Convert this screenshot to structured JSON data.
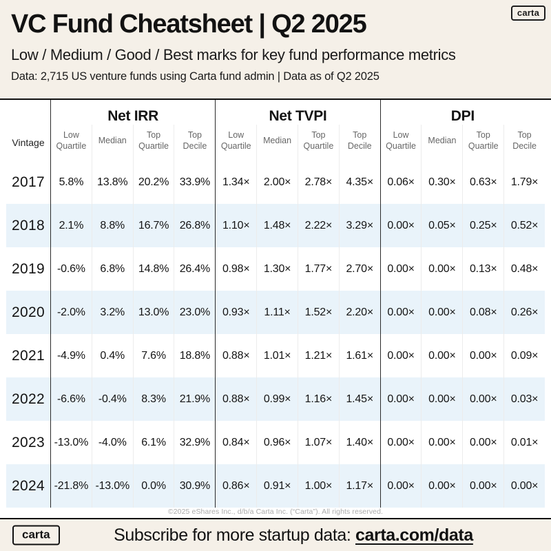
{
  "header": {
    "brand_badge": "carta",
    "title": "VC Fund Cheatsheet | Q2 2025",
    "subtitle": "Low / Medium / Good / Best marks for key fund performance metrics",
    "data_note": "Data: 2,715 US venture funds using Carta fund admin | Data as of Q2 2025"
  },
  "chart_data": {
    "type": "table",
    "title": "VC Fund Cheatsheet | Q2 2025",
    "row_header": "Vintage",
    "groups": [
      {
        "label": "Net IRR",
        "columns": [
          "Low Quartile",
          "Median",
          "Top Quartile",
          "Top Decile"
        ]
      },
      {
        "label": "Net TVPI",
        "columns": [
          "Low Quartile",
          "Median",
          "Top Quartile",
          "Top Decile"
        ]
      },
      {
        "label": "DPI",
        "columns": [
          "Low Quartile",
          "Median",
          "Top Quartile",
          "Top Decile"
        ]
      }
    ],
    "rows": [
      {
        "vintage": "2017",
        "values": [
          "5.8%",
          "13.8%",
          "20.2%",
          "33.9%",
          "1.34×",
          "2.00×",
          "2.78×",
          "4.35×",
          "0.06×",
          "0.30×",
          "0.63×",
          "1.79×"
        ]
      },
      {
        "vintage": "2018",
        "values": [
          "2.1%",
          "8.8%",
          "16.7%",
          "26.8%",
          "1.10×",
          "1.48×",
          "2.22×",
          "3.29×",
          "0.00×",
          "0.05×",
          "0.25×",
          "0.52×"
        ]
      },
      {
        "vintage": "2019",
        "values": [
          "-0.6%",
          "6.8%",
          "14.8%",
          "26.4%",
          "0.98×",
          "1.30×",
          "1.77×",
          "2.70×",
          "0.00×",
          "0.00×",
          "0.13×",
          "0.48×"
        ]
      },
      {
        "vintage": "2020",
        "values": [
          "-2.0%",
          "3.2%",
          "13.0%",
          "23.0%",
          "0.93×",
          "1.11×",
          "1.52×",
          "2.20×",
          "0.00×",
          "0.00×",
          "0.08×",
          "0.26×"
        ]
      },
      {
        "vintage": "2021",
        "values": [
          "-4.9%",
          "0.4%",
          "7.6%",
          "18.8%",
          "0.88×",
          "1.01×",
          "1.21×",
          "1.61×",
          "0.00×",
          "0.00×",
          "0.00×",
          "0.09×"
        ]
      },
      {
        "vintage": "2022",
        "values": [
          "-6.6%",
          "-0.4%",
          "8.3%",
          "21.9%",
          "0.88×",
          "0.99×",
          "1.16×",
          "1.45×",
          "0.00×",
          "0.00×",
          "0.00×",
          "0.03×"
        ]
      },
      {
        "vintage": "2023",
        "values": [
          "-13.0%",
          "-4.0%",
          "6.1%",
          "32.9%",
          "0.84×",
          "0.96×",
          "1.07×",
          "1.40×",
          "0.00×",
          "0.00×",
          "0.00×",
          "0.01×"
        ]
      },
      {
        "vintage": "2024",
        "values": [
          "-21.8%",
          "-13.0%",
          "0.0%",
          "30.9%",
          "0.86×",
          "0.91×",
          "1.00×",
          "1.17×",
          "0.00×",
          "0.00×",
          "0.00×",
          "0.00×"
        ]
      }
    ]
  },
  "footer": {
    "copyright": "©2025 eShares Inc., d/b/a Carta Inc. (“Carta”). All rights reserved.",
    "brand_badge": "carta",
    "subscribe_text": "Subscribe for more startup data: ",
    "subscribe_link": "carta.com/data"
  },
  "colors": {
    "background": "#f5f0e8",
    "stripe": "#e9f3fa",
    "text": "#121212",
    "muted_header": "#666666",
    "rule": "#111111"
  }
}
